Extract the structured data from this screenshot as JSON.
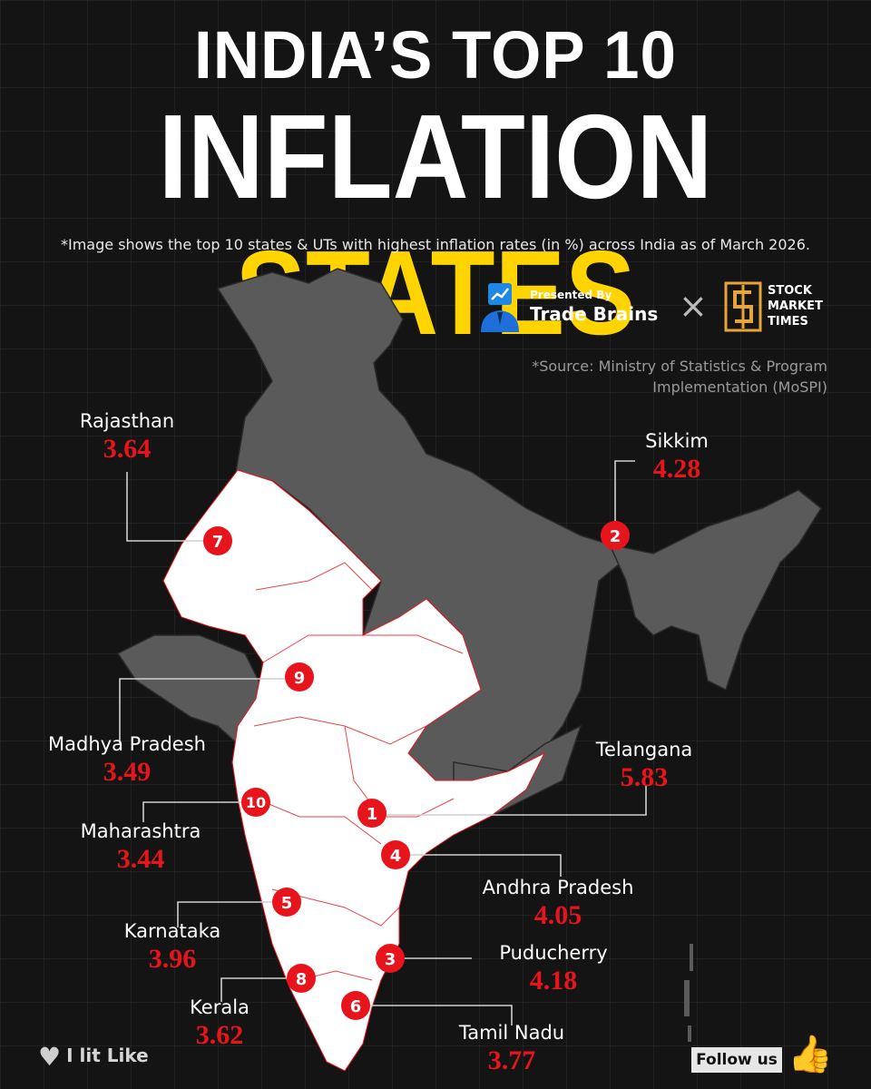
{
  "header": {
    "title_line1": "INDIA’S TOP 10",
    "title_line2_white": "INFLATION ",
    "title_line2_yellow": "STATES",
    "note": "*Image shows the top 10 states & UTs with highest inflation rates (in %) across India as of March 2026."
  },
  "brand": {
    "presented_by": "Presented By",
    "trade_brains": "Trade Brains",
    "times_sign": "×",
    "smt_line1": "STOCK",
    "smt_line2": "MARKET",
    "smt_line3": "TIMES"
  },
  "source": {
    "line1": "*Source: Ministry of Statistics & Program",
    "line2": "Implementation (MoSPI)"
  },
  "map": {
    "highlight_color": "#ffffff",
    "base_color": "#5a5a5a",
    "marker_color": "#e8141c",
    "states": [
      {
        "rank": "1",
        "name": "Telangana",
        "value": "5.83"
      },
      {
        "rank": "2",
        "name": "Sikkim",
        "value": "4.28"
      },
      {
        "rank": "3",
        "name": "Puducherry",
        "value": "4.18"
      },
      {
        "rank": "4",
        "name": "Andhra Pradesh",
        "value": "4.05"
      },
      {
        "rank": "5",
        "name": "Karnataka",
        "value": "3.96"
      },
      {
        "rank": "6",
        "name": "Tamil Nadu",
        "value": "3.77"
      },
      {
        "rank": "7",
        "name": "Rajasthan",
        "value": "3.64"
      },
      {
        "rank": "8",
        "name": "Kerala",
        "value": "3.62"
      },
      {
        "rank": "9",
        "name": "Madhya Pradesh",
        "value": "3.49"
      },
      {
        "rank": "10",
        "name": "Maharashtra",
        "value": "3.44"
      }
    ]
  },
  "footer": {
    "like": "I lit Like",
    "follow": "Follow us",
    "heart_icon": "heart-icon",
    "thumb_icon": "thumbs-up-icon"
  }
}
